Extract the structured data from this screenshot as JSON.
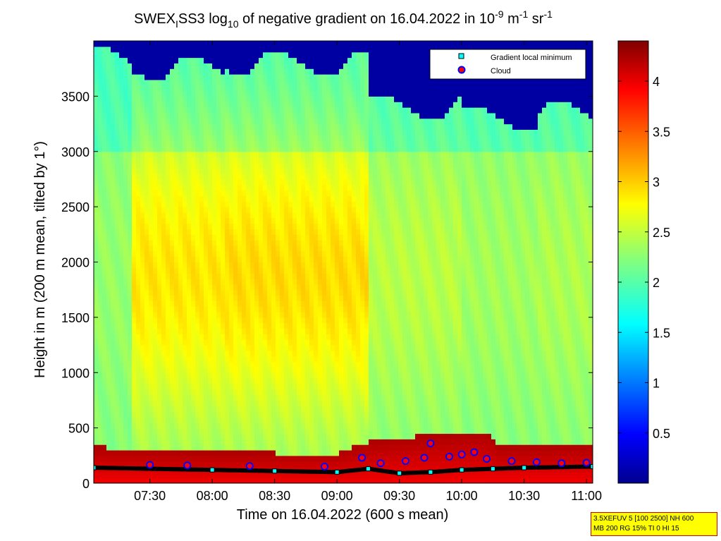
{
  "chart_data": {
    "type": "heatmap",
    "title": {
      "prefix": "SWEX",
      "sub1": "I",
      "mid": "SS3 log",
      "sub2": "10",
      "rest": " of negative gradient on 16.04.2022 in 10",
      "sup1": "-9",
      "unit1": " m",
      "sup2": "-1",
      "unit2": " sr",
      "sup3": "-1"
    },
    "xlabel": "Time on 16.04.2022 (600 s mean)",
    "ylabel": "Height in m (200 m mean, tilted by 1°)",
    "xlim_hours": [
      7.05,
      11.05
    ],
    "ylim": [
      0,
      4000
    ],
    "x_ticks": [
      {
        "label": "07:30",
        "hour": 7.5
      },
      {
        "label": "08:00",
        "hour": 8.0
      },
      {
        "label": "08:30",
        "hour": 8.5
      },
      {
        "label": "09:00",
        "hour": 9.0
      },
      {
        "label": "09:30",
        "hour": 9.5
      },
      {
        "label": "10:00",
        "hour": 10.0
      },
      {
        "label": "10:30",
        "hour": 10.5
      },
      {
        "label": "11:00",
        "hour": 11.0
      }
    ],
    "y_ticks": [
      "0",
      "500",
      "1000",
      "1500",
      "2000",
      "2500",
      "3000",
      "3500"
    ],
    "colorbar": {
      "ticks": [
        "0.5",
        "1",
        "1.5",
        "2",
        "2.5",
        "3",
        "3.5",
        "4"
      ],
      "range": [
        0,
        4.4
      ]
    },
    "legend": {
      "placement": "top-right",
      "entries": [
        {
          "label": "Gradient local minimum",
          "marker": "square",
          "color": "#00ffff"
        },
        {
          "label": "Cloud",
          "marker": "circle",
          "color": "#ff0000"
        }
      ]
    },
    "profile_model": {
      "note": "approximate log10 gradient field",
      "segments": [
        {
          "start": 7.05,
          "end": 7.35,
          "mid_level": 2.3,
          "top_dark_above": 3850
        },
        {
          "start": 7.35,
          "end": 8.1,
          "mid_level": 2.85,
          "top_dark_above": 3750
        },
        {
          "start": 8.1,
          "end": 9.25,
          "mid_level": 2.9,
          "top_dark_above": 3800
        },
        {
          "start": 9.25,
          "end": 10.0,
          "mid_level": 2.45,
          "top_dark_above": 3400
        },
        {
          "start": 10.0,
          "end": 10.6,
          "mid_level": 2.35,
          "top_dark_above": 3300
        },
        {
          "start": 10.6,
          "end": 11.05,
          "mid_level": 2.4,
          "top_dark_above": 3350
        }
      ],
      "surface_band_level": 4.2,
      "surface_band_top_m": [
        {
          "hour": 7.05,
          "h": 330
        },
        {
          "hour": 8.0,
          "h": 280
        },
        {
          "hour": 9.0,
          "h": 270
        },
        {
          "hour": 9.25,
          "h": 380
        },
        {
          "hour": 9.75,
          "h": 440
        },
        {
          "hour": 10.2,
          "h": 460
        },
        {
          "hour": 10.3,
          "h": 330
        },
        {
          "hour": 11.05,
          "h": 350
        }
      ]
    },
    "gradient_local_minimum_m": [
      {
        "hour": 7.05,
        "h": 140
      },
      {
        "hour": 8.0,
        "h": 120
      },
      {
        "hour": 8.5,
        "h": 110
      },
      {
        "hour": 9.0,
        "h": 100
      },
      {
        "hour": 9.25,
        "h": 130
      },
      {
        "hour": 9.5,
        "h": 90
      },
      {
        "hour": 9.75,
        "h": 100
      },
      {
        "hour": 10.0,
        "h": 120
      },
      {
        "hour": 10.25,
        "h": 130
      },
      {
        "hour": 10.5,
        "h": 140
      },
      {
        "hour": 11.05,
        "h": 150
      }
    ],
    "cloud_points": [
      {
        "hour": 7.5,
        "h": 165
      },
      {
        "hour": 7.8,
        "h": 160
      },
      {
        "hour": 8.3,
        "h": 155
      },
      {
        "hour": 8.9,
        "h": 150
      },
      {
        "hour": 9.2,
        "h": 230
      },
      {
        "hour": 9.35,
        "h": 180
      },
      {
        "hour": 9.55,
        "h": 200
      },
      {
        "hour": 9.7,
        "h": 230
      },
      {
        "hour": 9.75,
        "h": 360
      },
      {
        "hour": 9.9,
        "h": 240
      },
      {
        "hour": 10.0,
        "h": 260
      },
      {
        "hour": 10.1,
        "h": 280
      },
      {
        "hour": 10.2,
        "h": 220
      },
      {
        "hour": 10.4,
        "h": 200
      },
      {
        "hour": 10.6,
        "h": 190
      },
      {
        "hour": 10.8,
        "h": 180
      },
      {
        "hour": 11.0,
        "h": 185
      }
    ]
  },
  "info_box": {
    "line1": "3.5XEFUV 5 [100 2500] NH 600",
    "line2": "MB 200 RG 15% TI 0 HI 15"
  }
}
